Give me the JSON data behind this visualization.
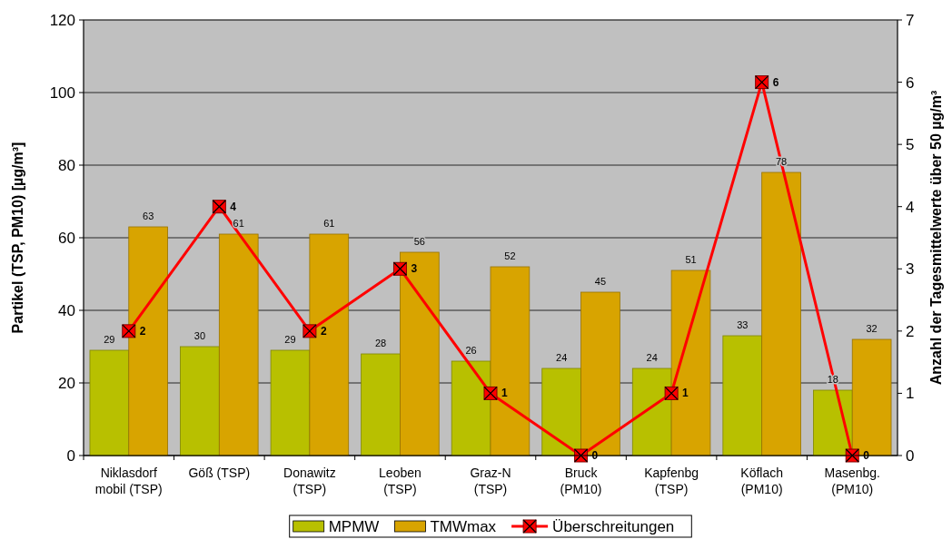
{
  "chart_data": {
    "type": "bar",
    "categories": [
      "Niklasdorf\nmobil (TSP)",
      "Göß (TSP)",
      "Donawitz\n(TSP)",
      "Leoben\n(TSP)",
      "Graz-N\n(TSP)",
      "Bruck\n(PM10)",
      "Kapfenbg\n(TSP)",
      "Köflach\n(PM10)",
      "Masenbg.\n(PM10)"
    ],
    "series": [
      {
        "name": "MPMW",
        "color": "#b8c000",
        "values": [
          29,
          30,
          29,
          28,
          26,
          24,
          24,
          33,
          18
        ]
      },
      {
        "name": "TMWmax",
        "color": "#d8a400",
        "values": [
          63,
          61,
          61,
          56,
          52,
          45,
          51,
          78,
          32
        ]
      },
      {
        "name": "Überschreitungen",
        "type": "line",
        "axis": "y2",
        "color": "#ff0000",
        "marker": "square",
        "values": [
          2,
          4,
          2,
          3,
          1,
          0,
          1,
          6,
          0
        ]
      }
    ],
    "ylabel": "Partikel (TSP, PM10) [µg/m³]",
    "y2label": "Anzahl der Tagesmittelwerte über 50 µg/m³",
    "ylim": [
      0,
      120
    ],
    "yticks": [
      0,
      20,
      40,
      60,
      80,
      100,
      120
    ],
    "y2lim": [
      0,
      7
    ],
    "y2ticks": [
      0,
      1,
      2,
      3,
      4,
      5,
      6,
      7
    ],
    "grid": "y",
    "legend": "bottom",
    "data_labels": true
  }
}
